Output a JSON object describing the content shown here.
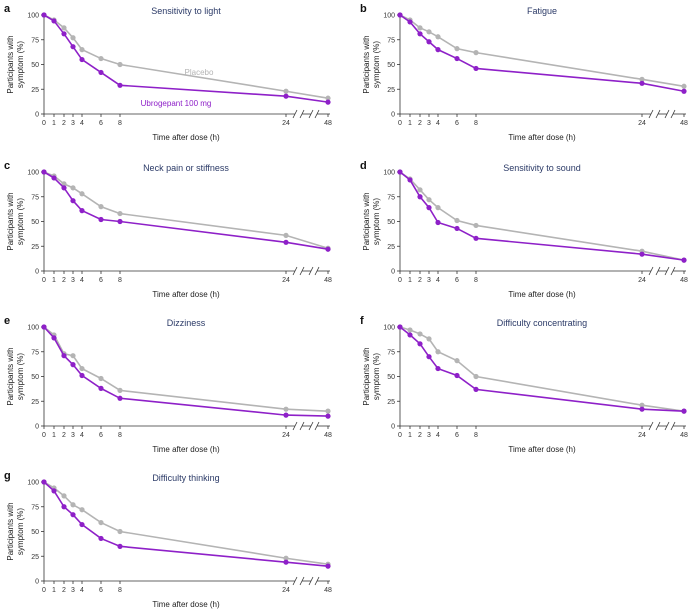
{
  "figure": {
    "colors": {
      "placebo": "#b4b4b4",
      "ubrogepant": "#8e20c8",
      "title": "#2b3a67"
    },
    "x_ticks": [
      "0",
      "1",
      "2",
      "3",
      "4",
      "6",
      "8",
      "24",
      "48"
    ],
    "x_values": [
      0,
      1,
      2,
      3,
      4,
      6,
      8,
      24,
      48
    ],
    "y_ticks": [
      "0",
      "25",
      "50",
      "75",
      "100"
    ],
    "ylabel_line1": "Participants with",
    "ylabel_line2": "symptom (%)",
    "xlabel": "Time after dose (h)",
    "legend": {
      "placebo": "Placebo",
      "ubrogepant": "Ubrogepant 100 mg"
    }
  },
  "chart_data": [
    {
      "type": "line",
      "letter": "a",
      "title": "Sensitivity to light",
      "x": [
        0,
        1,
        2,
        3,
        4,
        6,
        8,
        24,
        48
      ],
      "ylim": [
        0,
        100
      ],
      "xlabel": "Time after dose (h)",
      "ylabel": "Participants with symptom (%)",
      "series": [
        {
          "name": "Placebo",
          "values": [
            100,
            95,
            87,
            77,
            65,
            56,
            50,
            23,
            16
          ]
        },
        {
          "name": "Ubrogepant 100 mg",
          "values": [
            100,
            94,
            81,
            68,
            55,
            42,
            29,
            18,
            12
          ]
        }
      ]
    },
    {
      "type": "line",
      "letter": "b",
      "title": "Fatigue",
      "x": [
        0,
        1,
        2,
        3,
        4,
        6,
        8,
        24,
        48
      ],
      "ylim": [
        0,
        100
      ],
      "xlabel": "Time after dose (h)",
      "ylabel": "Participants with symptom (%)",
      "series": [
        {
          "values": [
            100,
            95,
            87,
            83,
            78,
            66,
            62,
            35,
            28
          ]
        },
        {
          "values": [
            100,
            93,
            81,
            73,
            65,
            56,
            46,
            31,
            23
          ]
        }
      ]
    },
    {
      "type": "line",
      "letter": "c",
      "title": "Neck pain or stiffness",
      "x": [
        0,
        1,
        2,
        3,
        4,
        6,
        8,
        24,
        48
      ],
      "ylim": [
        0,
        100
      ],
      "xlabel": "Time after dose (h)",
      "ylabel": "Participants with symptom (%)",
      "series": [
        {
          "values": [
            100,
            96,
            88,
            84,
            78,
            65,
            58,
            36,
            23
          ]
        },
        {
          "values": [
            100,
            94,
            84,
            71,
            61,
            52,
            50,
            29,
            22
          ]
        }
      ]
    },
    {
      "type": "line",
      "letter": "d",
      "title": "Sensitivity to sound",
      "x": [
        0,
        1,
        2,
        3,
        4,
        6,
        8,
        24,
        48
      ],
      "ylim": [
        0,
        100
      ],
      "xlabel": "Time after dose (h)",
      "ylabel": "Participants with symptom (%)",
      "series": [
        {
          "values": [
            100,
            93,
            82,
            72,
            64,
            51,
            46,
            20,
            11
          ]
        },
        {
          "values": [
            100,
            92,
            75,
            64,
            49,
            43,
            33,
            17,
            11
          ]
        }
      ]
    },
    {
      "type": "line",
      "letter": "e",
      "title": "Dizziness",
      "x": [
        0,
        1,
        2,
        3,
        4,
        6,
        8,
        24,
        48
      ],
      "ylim": [
        0,
        100
      ],
      "xlabel": "Time after dose (h)",
      "ylabel": "Participants with symptom (%)",
      "series": [
        {
          "values": [
            100,
            92,
            73,
            71,
            58,
            48,
            36,
            17,
            15
          ]
        },
        {
          "values": [
            100,
            89,
            71,
            62,
            51,
            38,
            28,
            11,
            10
          ]
        }
      ]
    },
    {
      "type": "line",
      "letter": "f",
      "title": "Difficulty concentrating",
      "x": [
        0,
        1,
        2,
        3,
        4,
        6,
        8,
        24,
        48
      ],
      "ylim": [
        0,
        100
      ],
      "xlabel": "Time after dose (h)",
      "ylabel": "Participants with symptom (%)",
      "series": [
        {
          "values": [
            100,
            97,
            93,
            88,
            75,
            66,
            50,
            21,
            15
          ]
        },
        {
          "values": [
            100,
            92,
            83,
            70,
            58,
            51,
            37,
            17,
            15
          ]
        }
      ]
    },
    {
      "type": "line",
      "letter": "g",
      "title": "Difficulty thinking",
      "x": [
        0,
        1,
        2,
        3,
        4,
        6,
        8,
        24,
        48
      ],
      "ylim": [
        0,
        100
      ],
      "xlabel": "Time after dose (h)",
      "ylabel": "Participants with symptom (%)",
      "series": [
        {
          "values": [
            100,
            94,
            86,
            77,
            72,
            59,
            50,
            23,
            17
          ]
        },
        {
          "values": [
            100,
            91,
            75,
            67,
            57,
            43,
            35,
            19,
            15
          ]
        }
      ]
    }
  ]
}
